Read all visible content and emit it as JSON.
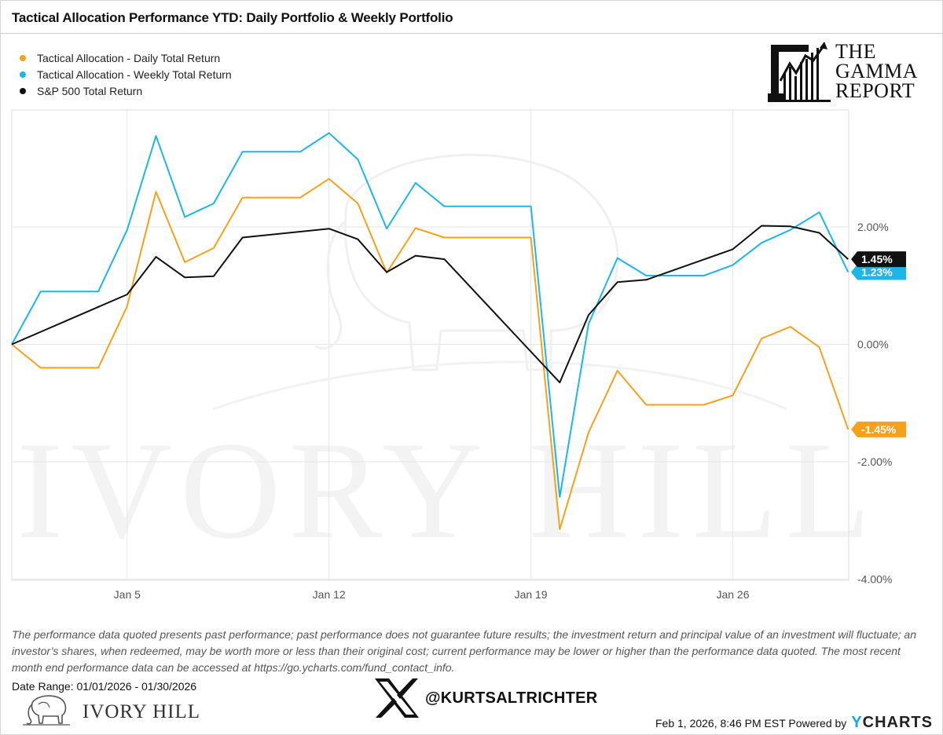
{
  "header": {
    "title": "Tactical Allocation Performance YTD: Daily Portfolio & Weekly Portfolio"
  },
  "branding": {
    "gamma_line1": "THE",
    "gamma_line2": "GAMMA",
    "gamma_line3": "REPORT",
    "watermark": "IVORY HILL",
    "ivory_hill": "IVORY HILL",
    "x_handle": "@KURTSALTRICHTER",
    "ycharts_prefix": "Y",
    "ycharts_suffix": "CHARTS",
    "powered_by": "Feb 1, 2026, 8:46 PM EST Powered by"
  },
  "footer": {
    "disclaimer": "The performance data quoted presents past performance; past performance does not guarantee future results; the investment return and principal value of an investment will fluctuate; an investor’s shares, when redeemed, may be worth more or less than their original cost; current performance may be lower or higher than the performance data quoted. The most recent month end performance data can be accessed at https://go.ycharts.com/fund_contact_info.",
    "date_range": "Date Range: 01/01/2026 - 01/30/2026"
  },
  "colors": {
    "daily": "#f5a11c",
    "weekly": "#1eb6e6",
    "sp500": "#111111",
    "grid": "#e6e6e6"
  },
  "chart_data": {
    "type": "line",
    "x_ticks": [
      "Jan 5",
      "Jan 12",
      "Jan 19",
      "Jan 26"
    ],
    "y_ticks": [
      "2.00%",
      "0.00%",
      "-2.00%",
      "-4.00%"
    ],
    "ylim": [
      -4,
      4
    ],
    "grid": true,
    "legend_position": "top-left",
    "series": [
      {
        "name": "Tactical Allocation - Daily Total Return",
        "end_label": "-1.45%",
        "color": "#f5a11c",
        "points": [
          {
            "x": "2026-01-01",
            "y": 0.0
          },
          {
            "x": "2026-01-02",
            "y": -0.4
          },
          {
            "x": "2026-01-04",
            "y": -0.4
          },
          {
            "x": "2026-01-05",
            "y": 0.65
          },
          {
            "x": "2026-01-06",
            "y": 2.6
          },
          {
            "x": "2026-01-07",
            "y": 1.4
          },
          {
            "x": "2026-01-08",
            "y": 1.64
          },
          {
            "x": "2026-01-09",
            "y": 2.5
          },
          {
            "x": "2026-01-11",
            "y": 2.5
          },
          {
            "x": "2026-01-12",
            "y": 2.82
          },
          {
            "x": "2026-01-13",
            "y": 2.4
          },
          {
            "x": "2026-01-14",
            "y": 1.22
          },
          {
            "x": "2026-01-15",
            "y": 1.98
          },
          {
            "x": "2026-01-16",
            "y": 1.82
          },
          {
            "x": "2026-01-19",
            "y": 1.82
          },
          {
            "x": "2026-01-20",
            "y": -3.15
          },
          {
            "x": "2026-01-21",
            "y": -1.5
          },
          {
            "x": "2026-01-22",
            "y": -0.45
          },
          {
            "x": "2026-01-23",
            "y": -1.03
          },
          {
            "x": "2026-01-25",
            "y": -1.03
          },
          {
            "x": "2026-01-26",
            "y": -0.87
          },
          {
            "x": "2026-01-27",
            "y": 0.1
          },
          {
            "x": "2026-01-28",
            "y": 0.3
          },
          {
            "x": "2026-01-29",
            "y": -0.05
          },
          {
            "x": "2026-01-30",
            "y": -1.45
          }
        ]
      },
      {
        "name": "Tactical Allocation - Weekly Total Return",
        "end_label": "1.23%",
        "color": "#1eb6e6",
        "points": [
          {
            "x": "2026-01-01",
            "y": 0.0
          },
          {
            "x": "2026-01-02",
            "y": 0.9
          },
          {
            "x": "2026-01-04",
            "y": 0.9
          },
          {
            "x": "2026-01-05",
            "y": 1.95
          },
          {
            "x": "2026-01-06",
            "y": 3.55
          },
          {
            "x": "2026-01-07",
            "y": 2.17
          },
          {
            "x": "2026-01-08",
            "y": 2.4
          },
          {
            "x": "2026-01-09",
            "y": 3.28
          },
          {
            "x": "2026-01-11",
            "y": 3.28
          },
          {
            "x": "2026-01-12",
            "y": 3.6
          },
          {
            "x": "2026-01-13",
            "y": 3.15
          },
          {
            "x": "2026-01-14",
            "y": 1.97
          },
          {
            "x": "2026-01-15",
            "y": 2.75
          },
          {
            "x": "2026-01-16",
            "y": 2.35
          },
          {
            "x": "2026-01-19",
            "y": 2.35
          },
          {
            "x": "2026-01-20",
            "y": -2.6
          },
          {
            "x": "2026-01-21",
            "y": 0.35
          },
          {
            "x": "2026-01-22",
            "y": 1.47
          },
          {
            "x": "2026-01-23",
            "y": 1.17
          },
          {
            "x": "2026-01-25",
            "y": 1.17
          },
          {
            "x": "2026-01-26",
            "y": 1.35
          },
          {
            "x": "2026-01-27",
            "y": 1.73
          },
          {
            "x": "2026-01-28",
            "y": 1.95
          },
          {
            "x": "2026-01-29",
            "y": 2.25
          },
          {
            "x": "2026-01-30",
            "y": 1.23
          }
        ]
      },
      {
        "name": "S&P 500 Total Return",
        "end_label": "1.45%",
        "color": "#111111",
        "points": [
          {
            "x": "2026-01-01",
            "y": 0.0
          },
          {
            "x": "2026-01-05",
            "y": 0.85
          },
          {
            "x": "2026-01-06",
            "y": 1.49
          },
          {
            "x": "2026-01-07",
            "y": 1.14
          },
          {
            "x": "2026-01-08",
            "y": 1.16
          },
          {
            "x": "2026-01-09",
            "y": 1.82
          },
          {
            "x": "2026-01-12",
            "y": 1.97
          },
          {
            "x": "2026-01-13",
            "y": 1.79
          },
          {
            "x": "2026-01-14",
            "y": 1.23
          },
          {
            "x": "2026-01-15",
            "y": 1.51
          },
          {
            "x": "2026-01-16",
            "y": 1.45
          },
          {
            "x": "2026-01-20",
            "y": -0.65
          },
          {
            "x": "2026-01-21",
            "y": 0.5
          },
          {
            "x": "2026-01-22",
            "y": 1.06
          },
          {
            "x": "2026-01-23",
            "y": 1.1
          },
          {
            "x": "2026-01-26",
            "y": 1.62
          },
          {
            "x": "2026-01-27",
            "y": 2.02
          },
          {
            "x": "2026-01-28",
            "y": 2.01
          },
          {
            "x": "2026-01-29",
            "y": 1.9
          },
          {
            "x": "2026-01-30",
            "y": 1.45
          }
        ]
      }
    ]
  }
}
